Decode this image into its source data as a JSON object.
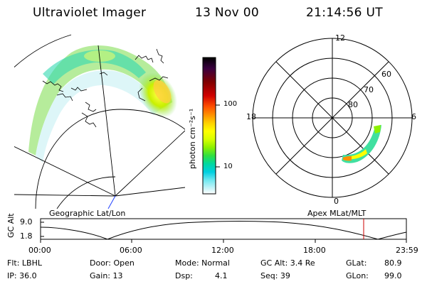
{
  "header": {
    "instrument": "Ultraviolet Imager",
    "date": "13 Nov 00",
    "time": "21:14:56 UT"
  },
  "left_panel": {
    "label": "Geographic Lat/Lon"
  },
  "right_panel": {
    "label": "Apex MLat/MLT",
    "mlt_labels": {
      "top": "12",
      "left": "18",
      "right": "6",
      "bottom": "0"
    },
    "lat_labels": [
      "60",
      "70",
      "80"
    ]
  },
  "colorbar": {
    "unit": "photon cm⁻²s⁻¹",
    "ticks": [
      "100",
      "10"
    ],
    "colors": [
      "#000000",
      "#3a0040",
      "#800000",
      "#d00000",
      "#ff5000",
      "#ff9000",
      "#ffd000",
      "#ffff00",
      "#d8ff00",
      "#8cf000",
      "#30e040",
      "#00d8a0",
      "#00d0e0",
      "#70e8f0",
      "#c8f4f8",
      "#ffffff"
    ]
  },
  "altitude_plot": {
    "ylabel": "GC Alt",
    "y_ticks": [
      "9.0",
      "1.8"
    ],
    "x_ticks": [
      "00:00",
      "06:00",
      "12:00",
      "18:00",
      "23:59"
    ],
    "marker_color": "#cc0000"
  },
  "info": {
    "flt": "Flt: LBHL",
    "door": "Door: Open",
    "mode": "Mode: Normal",
    "gc_alt": "GC Alt: 3.4 Re",
    "glat_label": "GLat:",
    "glat_value": "80.9",
    "ip": "IP: 36.0",
    "gain": "Gain: 13",
    "dsp_label": "Dsp:",
    "dsp_value": "4.1",
    "seq": "Seq: 39",
    "glon_label": "GLon:",
    "glon_value": "99.0"
  }
}
